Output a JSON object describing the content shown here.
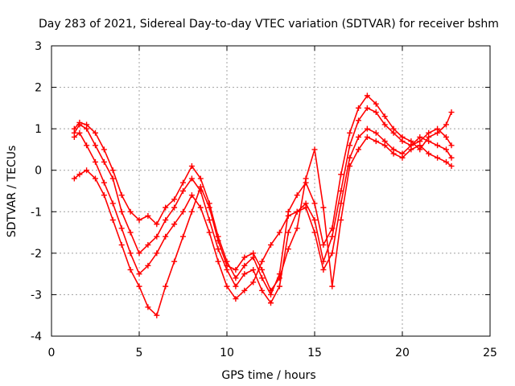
{
  "chart_data": {
    "type": "scatter",
    "title": "Day 283 of 2021, Sidereal Day-to-day VTEC variation (SDTVAR) for receiver bshm",
    "xlabel": "GPS time / hours",
    "ylabel": "SDTVAR / TECUs",
    "xlim": [
      0,
      25
    ],
    "ylim": [
      -4,
      3
    ],
    "xticks": [
      "0",
      "5",
      "10",
      "15",
      "20",
      "25"
    ],
    "yticks": [
      "-4",
      "-3",
      "-2",
      "-1",
      "0",
      "1",
      "2",
      "3"
    ],
    "grid": true,
    "marker": "+",
    "color": "#ff0000",
    "series": [
      {
        "x": [
          1.3,
          1.6,
          2.0,
          2.5,
          3.0,
          3.5,
          4.0,
          4.5,
          5.0,
          5.5,
          6.0,
          6.5,
          7.0,
          7.5,
          8.0,
          8.5,
          9.0,
          9.5,
          10.0,
          10.5,
          11.0,
          11.5,
          12.0,
          12.5,
          13.0,
          13.5,
          14.0,
          14.5,
          15.0,
          15.5,
          16.0,
          16.5,
          17.0,
          17.5,
          18.0,
          18.5,
          19.0,
          19.5,
          20.0,
          20.5,
          21.0,
          21.5,
          22.0,
          22.5,
          22.8
        ],
        "y": [
          1.0,
          1.15,
          1.1,
          0.9,
          0.5,
          0.0,
          -0.6,
          -1.0,
          -1.2,
          -1.1,
          -1.3,
          -0.9,
          -0.7,
          -0.3,
          0.1,
          -0.2,
          -0.8,
          -1.6,
          -2.2,
          -2.6,
          -2.3,
          -2.1,
          -2.6,
          -3.0,
          -2.5,
          -1.0,
          -0.6,
          -0.3,
          -0.8,
          -1.8,
          -1.4,
          -0.1,
          0.9,
          1.5,
          1.8,
          1.6,
          1.3,
          1.0,
          0.8,
          0.7,
          0.5,
          0.8,
          0.9,
          1.1,
          1.4
        ]
      },
      {
        "x": [
          1.3,
          1.6,
          2.0,
          2.5,
          3.0,
          3.5,
          4.0,
          4.5,
          5.0,
          5.5,
          6.0,
          6.5,
          7.0,
          7.5,
          8.0,
          8.5,
          9.0,
          9.5,
          10.0,
          10.5,
          11.0,
          11.5,
          12.0,
          12.5,
          13.0,
          13.5,
          14.0,
          14.5,
          15.0,
          15.5,
          16.0,
          16.5,
          17.0,
          17.5,
          18.0,
          18.5,
          19.0,
          19.5,
          20.0,
          20.5,
          21.0,
          21.5,
          22.0,
          22.5,
          22.8
        ],
        "y": [
          0.9,
          1.1,
          1.0,
          0.6,
          0.2,
          -0.2,
          -1.0,
          -1.5,
          -2.0,
          -1.8,
          -1.6,
          -1.2,
          -0.9,
          -0.5,
          -0.2,
          -0.5,
          -1.2,
          -1.9,
          -2.4,
          -2.8,
          -2.5,
          -2.4,
          -2.9,
          -3.2,
          -2.8,
          -1.5,
          -1.0,
          -0.8,
          -1.2,
          -2.2,
          -1.6,
          -0.5,
          0.6,
          1.2,
          1.5,
          1.4,
          1.1,
          0.9,
          0.7,
          0.6,
          0.7,
          0.9,
          1.0,
          0.8,
          0.6
        ]
      },
      {
        "x": [
          1.3,
          1.6,
          2.0,
          2.5,
          3.0,
          3.5,
          4.0,
          4.5,
          5.0,
          5.5,
          6.0,
          6.5,
          7.0,
          7.5,
          8.0,
          8.5,
          9.0,
          9.5,
          10.0,
          10.5,
          11.0,
          11.5,
          12.0,
          12.5,
          13.0,
          13.5,
          14.0,
          14.5,
          15.0,
          15.5,
          16.0,
          16.5,
          17.0,
          17.5,
          18.0,
          18.5,
          19.0,
          19.5,
          20.0,
          20.5,
          21.0,
          21.5,
          22.0,
          22.5,
          22.8
        ],
        "y": [
          0.8,
          0.9,
          0.6,
          0.2,
          -0.3,
          -0.8,
          -1.4,
          -2.0,
          -2.5,
          -2.3,
          -2.0,
          -1.6,
          -1.3,
          -1.0,
          -0.6,
          -0.9,
          -1.5,
          -2.2,
          -2.8,
          -3.1,
          -2.9,
          -2.7,
          -2.2,
          -1.8,
          -1.5,
          -1.1,
          -1.0,
          -0.9,
          -1.5,
          -2.4,
          -2.0,
          -0.8,
          0.3,
          0.8,
          1.0,
          0.9,
          0.7,
          0.5,
          0.4,
          0.6,
          0.8,
          0.7,
          0.6,
          0.5,
          0.3
        ]
      },
      {
        "x": [
          1.3,
          1.6,
          2.0,
          2.5,
          3.0,
          3.5,
          4.0,
          4.5,
          5.0,
          5.5,
          6.0,
          6.5,
          7.0,
          7.5,
          8.0,
          8.5,
          9.0,
          9.5,
          10.0,
          10.5,
          11.0,
          11.5,
          12.0,
          12.5,
          13.0,
          13.5,
          14.0,
          14.5,
          15.0,
          15.5,
          16.0,
          16.5,
          17.0,
          17.5,
          18.0,
          18.5,
          19.0,
          19.5,
          20.0,
          20.5,
          21.0,
          21.5,
          22.0,
          22.5,
          22.8
        ],
        "y": [
          -0.2,
          -0.1,
          0.0,
          -0.2,
          -0.6,
          -1.2,
          -1.8,
          -2.4,
          -2.8,
          -3.3,
          -3.5,
          -2.8,
          -2.2,
          -1.6,
          -1.0,
          -0.4,
          -0.9,
          -1.7,
          -2.3,
          -2.4,
          -2.1,
          -2.0,
          -2.4,
          -2.9,
          -2.6,
          -1.9,
          -1.4,
          -0.2,
          0.5,
          -0.9,
          -2.8,
          -1.2,
          0.1,
          0.5,
          0.8,
          0.7,
          0.6,
          0.4,
          0.3,
          0.5,
          0.6,
          0.4,
          0.3,
          0.2,
          0.1
        ]
      }
    ]
  }
}
